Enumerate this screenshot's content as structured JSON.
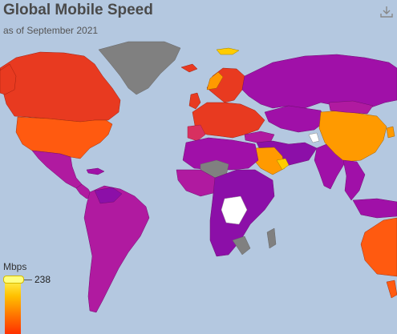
{
  "header": {
    "title": "Global Mobile Speed",
    "subtitle": "as of September 2021"
  },
  "legend": {
    "title": "Mbps",
    "max_label": "238",
    "gradient_colors": [
      "#ffff66",
      "#ffc000",
      "#ff7000",
      "#ff3000"
    ]
  },
  "colors": {
    "ocean": "#b4c8e0",
    "no_data": "#808080",
    "low": "#8c0fa8",
    "mid_low": "#b01aa0",
    "mid": "#d83060",
    "high": "#e83a20",
    "higher": "#ff5a10",
    "highest": "#ff9a00",
    "top": "#ffcc00",
    "white_region": "#ffffff"
  },
  "toolbar": {
    "download_icon": "download-icon"
  }
}
